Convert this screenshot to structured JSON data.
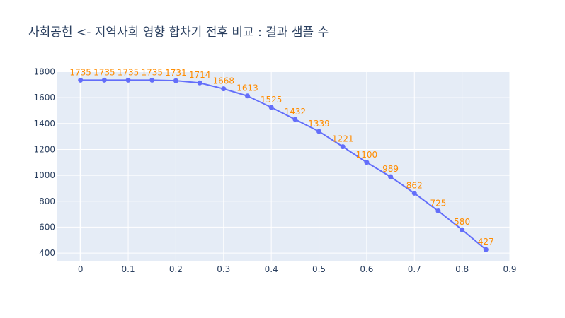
{
  "chart_data": {
    "type": "line",
    "title": "사회공헌 <- 지역사회 영향 합차기 전후 비교 : 결과 샘플 수",
    "xlabel": "",
    "ylabel": "",
    "x": [
      0,
      0.05,
      0.1,
      0.15,
      0.2,
      0.25,
      0.3,
      0.35,
      0.4,
      0.45,
      0.5,
      0.55,
      0.6,
      0.65,
      0.7,
      0.75,
      0.8,
      0.85
    ],
    "series": [
      {
        "name": "결과 샘플 수",
        "values": [
          1735,
          1735,
          1735,
          1735,
          1731,
          1714,
          1668,
          1613,
          1525,
          1432,
          1339,
          1221,
          1100,
          989,
          862,
          725,
          580,
          427
        ]
      }
    ],
    "xlim": [
      -0.05,
      0.9
    ],
    "ylim": [
      335,
      1808
    ],
    "xticks": [
      0,
      0.1,
      0.2,
      0.3,
      0.4,
      0.5,
      0.6,
      0.7,
      0.8,
      0.9
    ],
    "xtick_labels": [
      "0",
      "0.1",
      "0.2",
      "0.3",
      "0.4",
      "0.5",
      "0.6",
      "0.7",
      "0.8",
      "0.9"
    ],
    "yticks": [
      400,
      600,
      800,
      1000,
      1200,
      1400,
      1600,
      1800
    ],
    "ytick_labels": [
      "400",
      "600",
      "800",
      "1000",
      "1200",
      "1400",
      "1600",
      "1800"
    ],
    "grid": true,
    "colors": {
      "line": "#636efa",
      "label": "#ff8c00",
      "plot_bg": "#e5ecf6",
      "grid": "#ffffff",
      "text": "#2a3f5f"
    }
  }
}
